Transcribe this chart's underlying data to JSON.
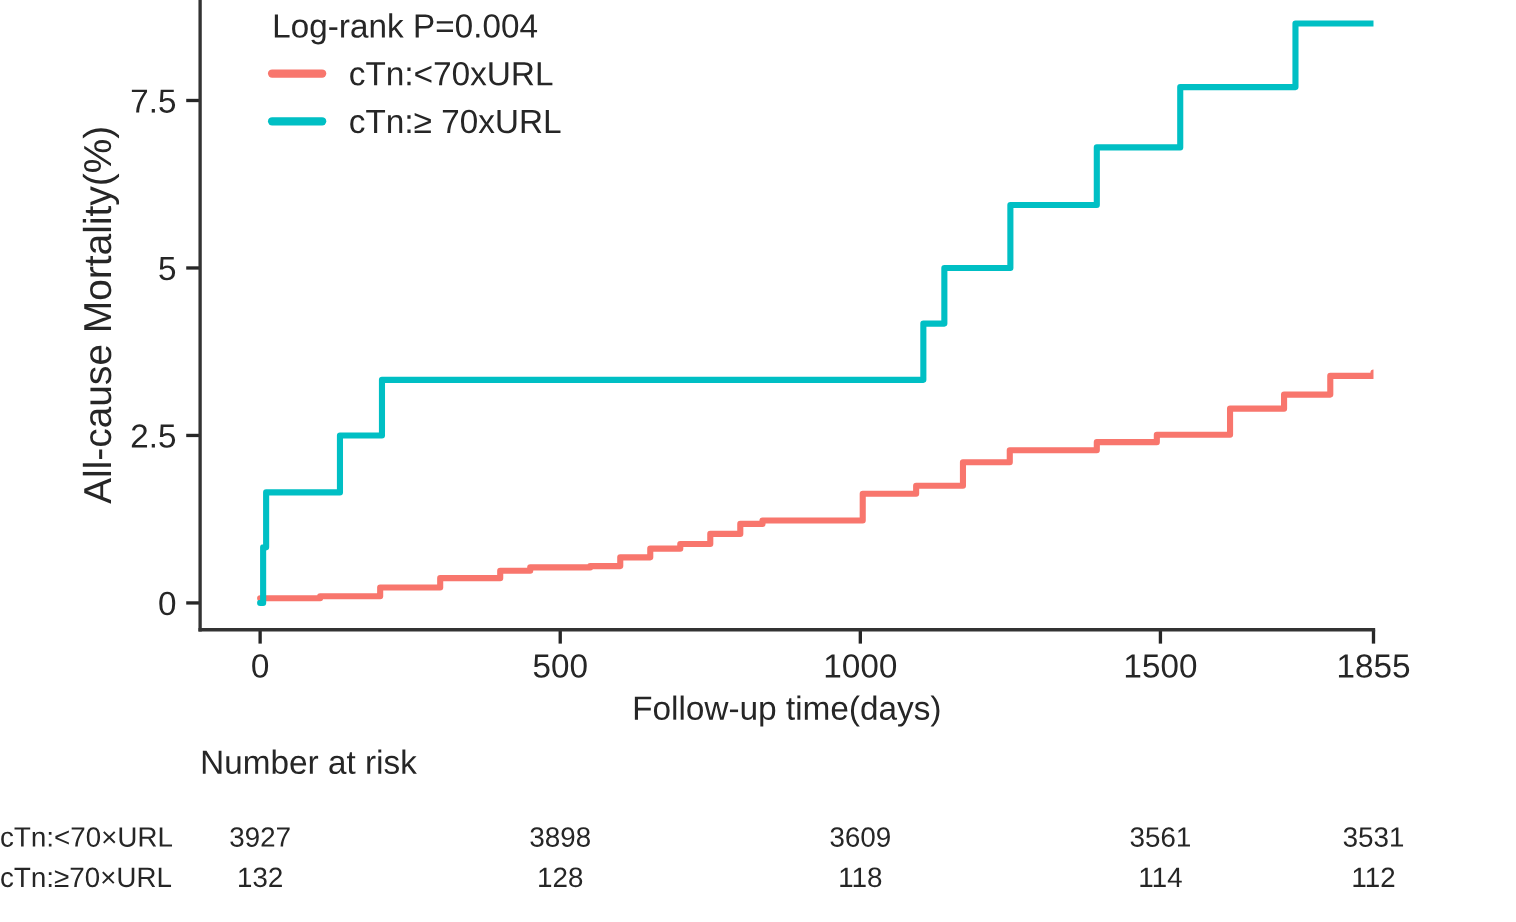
{
  "chart_data": {
    "type": "step",
    "ylabel": "All-cause Mortality(%)",
    "xlabel": "Follow-up time(days)",
    "legend_title": "Log-rank P=0.004",
    "legend": "top left",
    "grid": false,
    "xlim": [
      -100,
      1855
    ],
    "xticks": [
      0,
      500,
      1000,
      1500,
      1855
    ],
    "ylim": [
      -0.4,
      9
    ],
    "yticks": [
      0,
      2.5,
      5,
      7.5
    ],
    "series": [
      {
        "name": "cTn:<70xURL",
        "color": "#f8766d",
        "x": [
          0,
          100,
          200,
          300,
          400,
          450,
          550,
          600,
          650,
          700,
          750,
          800,
          837,
          1004,
          1093,
          1171,
          1249,
          1394,
          1494,
          1616,
          1706,
          1783,
          1855
        ],
        "values": [
          0.07,
          0.1,
          0.23,
          0.37,
          0.48,
          0.53,
          0.55,
          0.68,
          0.81,
          0.88,
          1.03,
          1.18,
          1.23,
          1.63,
          1.75,
          2.1,
          2.28,
          2.4,
          2.51,
          2.9,
          3.11,
          3.39,
          3.44
        ]
      },
      {
        "name": "cTn:≥ 70xURL",
        "color": "#00bfc4",
        "x": [
          0,
          5,
          10,
          133,
          203,
          1105,
          1140,
          1250,
          1394,
          1533,
          1725,
          1855
        ],
        "values": [
          0,
          0.83,
          1.65,
          2.5,
          3.33,
          4.17,
          5.0,
          5.94,
          6.8,
          7.7,
          8.65,
          8.65
        ]
      }
    ],
    "annotations": [
      "Number at risk",
      "cTn:<70×URL",
      "3927",
      "3898",
      "3609",
      "3561",
      "3531",
      "cTn:≥70×URL",
      "132",
      "128",
      "118",
      "114",
      "112"
    ]
  }
}
